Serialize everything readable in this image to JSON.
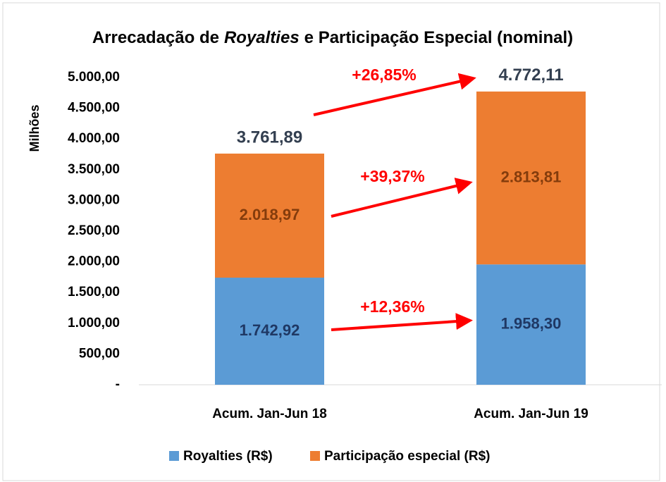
{
  "chart_data": {
    "type": "stacked_bar",
    "title": [
      {
        "text": "Arrecadação de"
      },
      {
        "text": "Royalties",
        "italic": true
      },
      {
        "text": "e Participação Especial (nominal)"
      }
    ],
    "ylabel": "Milhões",
    "categories": [
      "Acum. Jan-Jun 18",
      "Acum. Jan-Jun 19"
    ],
    "series": [
      {
        "name": "Royalties (R$)",
        "color": "#5b9bd5",
        "label_color": "#1f3864",
        "values": [
          1742.92,
          1958.3
        ],
        "value_labels": [
          "1.742,92",
          "1.958,30"
        ]
      },
      {
        "name": "Participação especial (R$)",
        "color": "#ed7d31",
        "label_color": "#843c0c",
        "values": [
          2018.97,
          2813.81
        ],
        "value_labels": [
          "2.018,97",
          "2.813,81"
        ]
      }
    ],
    "totals": {
      "values": [
        3761.89,
        4772.11
      ],
      "value_labels": [
        "3.761,89",
        "4.772,11"
      ]
    },
    "annotations": [
      "+26,85%",
      "+39,37%",
      "+12,36%"
    ],
    "ylim": [
      0,
      5000
    ],
    "yticks": [
      {
        "value": 0,
        "label": "-"
      },
      {
        "value": 500,
        "label": "500,00"
      },
      {
        "value": 1000,
        "label": "1.000,00"
      },
      {
        "value": 1500,
        "label": "1.500,00"
      },
      {
        "value": 2000,
        "label": "2.000,00"
      },
      {
        "value": 2500,
        "label": "2.500,00"
      },
      {
        "value": 3000,
        "label": "3.000,00"
      },
      {
        "value": 3500,
        "label": "3.500,00"
      },
      {
        "value": 4000,
        "label": "4.000,00"
      },
      {
        "value": 4500,
        "label": "4.500,00"
      },
      {
        "value": 5000,
        "label": "5.000,00"
      }
    ],
    "grid": false,
    "legend": "bottom"
  }
}
